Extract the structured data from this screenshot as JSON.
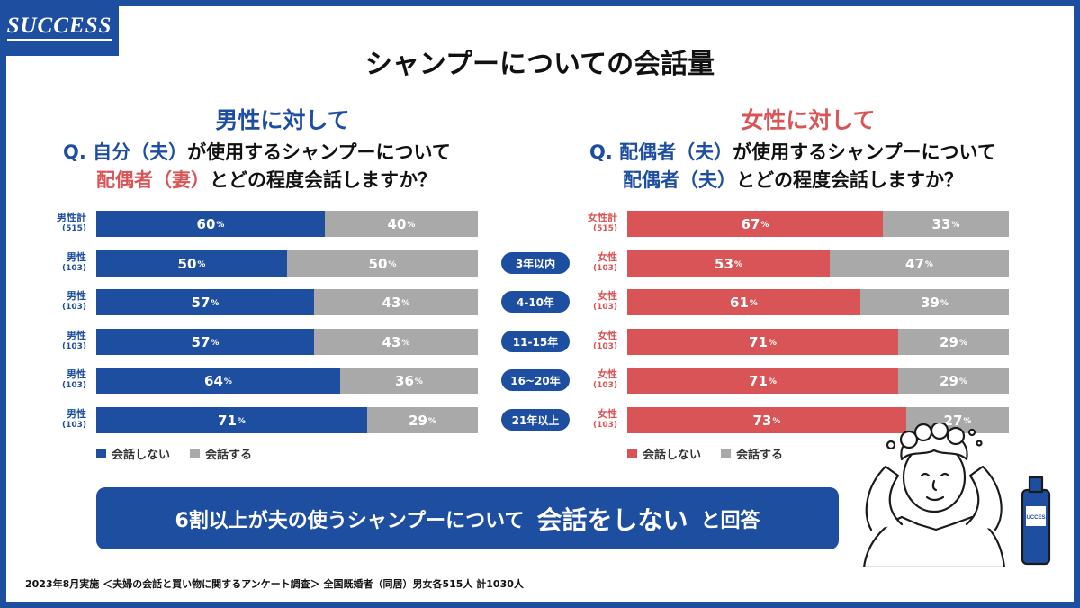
{
  "logo": {
    "text": "SUCCESS"
  },
  "title": "シャンプーについての会話量",
  "left": {
    "heading": "男性に対して",
    "question": {
      "prefix": "Q.",
      "part1": "自分（夫）",
      "part2": "が使用するシャンプーについて",
      "part3": "配偶者（妻）",
      "part4": "とどの程度会話しますか？"
    }
  },
  "right": {
    "heading": "女性に対して",
    "question": {
      "prefix": "Q.",
      "part1": "配偶者（夫）",
      "part2": "が使用するシャンプーについて",
      "part3": "配偶者（夫）",
      "part4": "とどの程度会話しますか？"
    }
  },
  "legend": {
    "no": "会話しない",
    "yes": "会話する"
  },
  "conclusion": {
    "part1": "6割以上が夫の使うシャンプーについて",
    "emphasis": "会話をしない",
    "part2": "と回答"
  },
  "footnote": "2023年8月実施 ＜夫婦の会話と買い物に関するアンケート調査＞ 全国既婚者（同居）男女各515人 計1030人",
  "colors": {
    "blue": "#1e4ea0",
    "red": "#d85456",
    "gray": "#a9a9a9"
  },
  "chart_data": [
    {
      "type": "bar",
      "orientation": "horizontal-stacked",
      "title": "男性に対して",
      "unit": "%",
      "categories": [
        {
          "label": "男性計",
          "n": "(515)"
        },
        {
          "label": "男性",
          "n": "(103)"
        },
        {
          "label": "男性",
          "n": "(103)"
        },
        {
          "label": "男性",
          "n": "(103)"
        },
        {
          "label": "男性",
          "n": "(103)"
        },
        {
          "label": "男性",
          "n": "(103)"
        }
      ],
      "series": [
        {
          "name": "会話しない",
          "values": [
            60,
            50,
            57,
            57,
            64,
            71
          ]
        },
        {
          "name": "会話する",
          "values": [
            40,
            50,
            43,
            43,
            36,
            29
          ]
        }
      ],
      "xlim": [
        0,
        100
      ]
    },
    {
      "type": "bar",
      "orientation": "horizontal-stacked",
      "title": "女性に対して",
      "unit": "%",
      "categories": [
        {
          "label": "女性計",
          "n": "(515)"
        },
        {
          "label": "女性",
          "n": "(103)"
        },
        {
          "label": "女性",
          "n": "(103)"
        },
        {
          "label": "女性",
          "n": "(103)"
        },
        {
          "label": "女性",
          "n": "(103)"
        },
        {
          "label": "女性",
          "n": "(103)"
        }
      ],
      "series": [
        {
          "name": "会話しない",
          "values": [
            67,
            53,
            61,
            71,
            71,
            73
          ]
        },
        {
          "name": "会話する",
          "values": [
            33,
            47,
            39,
            29,
            29,
            27
          ]
        }
      ],
      "xlim": [
        0,
        100
      ]
    }
  ],
  "periods": [
    "3年以内",
    "4-10年",
    "11-15年",
    "16~20年",
    "21年以上"
  ],
  "pct_symbol": "%"
}
